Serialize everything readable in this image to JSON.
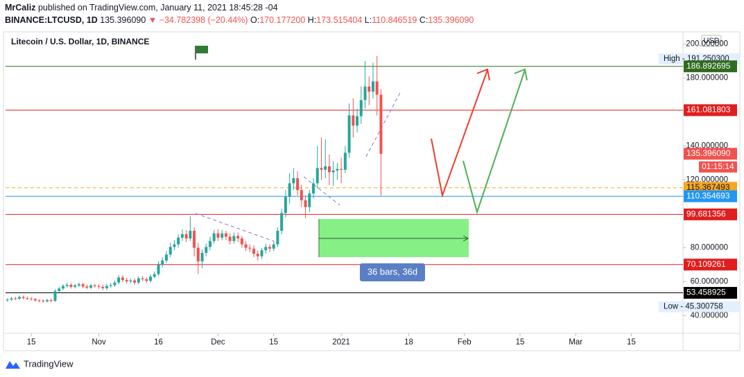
{
  "header": {
    "author": "MrCaliz",
    "published": "published on TradingView.com, January 11, 2021 18:45:28 -04",
    "symbol": "BINANCE:LTCUSD, 1D",
    "last": "135.396090",
    "change": "▼ −34.782398 (−20.44%)",
    "ohlc": [
      {
        "key": "O:",
        "value": "170.177200"
      },
      {
        "key": "H:",
        "value": "173.515404"
      },
      {
        "key": "L:",
        "value": "110.846519"
      },
      {
        "key": "C:",
        "value": "135.396090"
      }
    ]
  },
  "footer": {
    "brand": "TradingView"
  },
  "chart_data": {
    "type": "candlestick",
    "title": "Litecoin / U.S. Dollar, 1D, BINANCE",
    "currency": "USD",
    "up_color": "#26a69a",
    "down_color": "#ef5350",
    "x": [
      "2020-10-09",
      "2020-10-10",
      "2020-10-11",
      "2020-10-12",
      "2020-10-13",
      "2020-10-14",
      "2020-10-15",
      "2020-10-16",
      "2020-10-17",
      "2020-10-18",
      "2020-10-19",
      "2020-10-20",
      "2020-10-21",
      "2020-10-22",
      "2020-10-23",
      "2020-10-24",
      "2020-10-25",
      "2020-10-26",
      "2020-10-27",
      "2020-10-28",
      "2020-10-29",
      "2020-10-30",
      "2020-10-31",
      "2020-11-01",
      "2020-11-02",
      "2020-11-03",
      "2020-11-04",
      "2020-11-05",
      "2020-11-06",
      "2020-11-07",
      "2020-11-08",
      "2020-11-09",
      "2020-11-10",
      "2020-11-11",
      "2020-11-12",
      "2020-11-13",
      "2020-11-14",
      "2020-11-15",
      "2020-11-16",
      "2020-11-17",
      "2020-11-18",
      "2020-11-19",
      "2020-11-20",
      "2020-11-21",
      "2020-11-22",
      "2020-11-23",
      "2020-11-24",
      "2020-11-25",
      "2020-11-26",
      "2020-11-27",
      "2020-11-28",
      "2020-11-29",
      "2020-11-30",
      "2020-12-01",
      "2020-12-02",
      "2020-12-03",
      "2020-12-04",
      "2020-12-05",
      "2020-12-06",
      "2020-12-07",
      "2020-12-08",
      "2020-12-09",
      "2020-12-10",
      "2020-12-11",
      "2020-12-12",
      "2020-12-13",
      "2020-12-14",
      "2020-12-15",
      "2020-12-16",
      "2020-12-17",
      "2020-12-18",
      "2020-12-19",
      "2020-12-20",
      "2020-12-21",
      "2020-12-22",
      "2020-12-23",
      "2020-12-24",
      "2020-12-25",
      "2020-12-26",
      "2020-12-27",
      "2020-12-28",
      "2020-12-29",
      "2020-12-30",
      "2020-12-31",
      "2021-01-01",
      "2021-01-02",
      "2021-01-03",
      "2021-01-04",
      "2021-01-05",
      "2021-01-06",
      "2021-01-07",
      "2021-01-08",
      "2021-01-09",
      "2021-01-10",
      "2021-01-11"
    ],
    "open": [
      49.0,
      49.5,
      50.2,
      50.0,
      51.0,
      50.4,
      50.1,
      49.8,
      49.0,
      48.8,
      48.5,
      49.2,
      48.7,
      54.5,
      56.0,
      57.5,
      58.2,
      57.0,
      57.8,
      58.5,
      57.2,
      56.5,
      57.8,
      57.4,
      57.0,
      56.2,
      57.5,
      58.0,
      59.5,
      62.5,
      61.0,
      60.2,
      60.8,
      59.5,
      62.0,
      61.5,
      60.5,
      63.0,
      64.5,
      70.0,
      72.5,
      76.0,
      80.5,
      82.0,
      86.0,
      88.0,
      85.5,
      90.0,
      80.0,
      72.0,
      77.0,
      80.5,
      84.0,
      88.5,
      86.0,
      88.5,
      86.5,
      84.0,
      87.0,
      85.5,
      82.0,
      80.0,
      79.5,
      76.5,
      75.0,
      78.5,
      80.5,
      79.5,
      82.0,
      90.0,
      100.5,
      110.0,
      118.0,
      121.0,
      114.0,
      108.0,
      104.0,
      112.0,
      118.0,
      127.0,
      126.0,
      128.0,
      124.5,
      125.5,
      126.5,
      126.0,
      136.0,
      158.0,
      152.0,
      157.5,
      167.0,
      175.0,
      172.0,
      178.0,
      170.1772
    ],
    "high": [
      50.3,
      51.0,
      51.2,
      51.8,
      51.9,
      51.2,
      50.9,
      50.5,
      49.8,
      49.6,
      50.0,
      50.1,
      55.6,
      57.0,
      58.6,
      59.4,
      59.2,
      58.8,
      59.6,
      59.4,
      58.3,
      58.9,
      58.8,
      58.6,
      58.2,
      58.7,
      59.3,
      60.8,
      64.0,
      63.8,
      62.3,
      62.0,
      61.9,
      63.3,
      63.4,
      62.6,
      64.3,
      66.0,
      72.0,
      74.5,
      78.0,
      83.0,
      84.5,
      88.0,
      91.0,
      90.5,
      98.5,
      92.0,
      83.0,
      79.0,
      82.5,
      86.5,
      90.5,
      91.0,
      90.5,
      90.0,
      88.5,
      89.0,
      89.0,
      87.0,
      84.0,
      82.0,
      81.5,
      78.5,
      80.0,
      82.5,
      82.0,
      84.0,
      92.0,
      103.0,
      114.0,
      124.0,
      127.0,
      125.0,
      117.0,
      111.0,
      114.0,
      121.0,
      140.0,
      145.0,
      144.0,
      135.0,
      131.0,
      130.0,
      133.0,
      140.0,
      165.0,
      168.0,
      162.0,
      175.0,
      190.0,
      181.0,
      189.0,
      193.0,
      173.515404
    ],
    "low": [
      48.3,
      48.8,
      49.2,
      49.3,
      49.6,
      49.2,
      48.9,
      48.2,
      47.9,
      47.7,
      47.8,
      47.9,
      48.2,
      53.6,
      55.0,
      56.6,
      56.0,
      56.1,
      56.9,
      56.2,
      55.6,
      55.6,
      56.5,
      55.8,
      55.0,
      55.2,
      56.5,
      57.0,
      58.5,
      59.8,
      59.0,
      59.1,
      58.3,
      58.4,
      60.3,
      59.3,
      59.5,
      62.0,
      63.5,
      68.5,
      71.0,
      74.5,
      78.5,
      80.0,
      84.0,
      83.5,
      84.0,
      75.0,
      64.5,
      68.0,
      75.0,
      78.5,
      82.5,
      84.0,
      84.5,
      84.5,
      82.0,
      82.5,
      83.5,
      80.0,
      78.0,
      77.5,
      74.5,
      72.5,
      73.5,
      76.5,
      77.5,
      78.0,
      80.5,
      88.0,
      98.0,
      106.0,
      114.0,
      111.0,
      104.0,
      97.5,
      101.0,
      109.0,
      115.0,
      120.0,
      121.0,
      117.0,
      116.5,
      120.0,
      118.0,
      124.0,
      133.0,
      145.0,
      148.0,
      153.0,
      162.0,
      164.0,
      168.0,
      158.0,
      110.846519
    ],
    "close": [
      49.5,
      50.2,
      50.0,
      51.0,
      50.4,
      50.1,
      49.8,
      49.0,
      48.8,
      48.5,
      49.2,
      48.7,
      54.5,
      56.0,
      57.5,
      58.2,
      57.0,
      57.8,
      58.5,
      57.2,
      56.5,
      57.8,
      57.4,
      57.0,
      56.2,
      57.5,
      58.0,
      59.5,
      62.5,
      61.0,
      60.2,
      60.8,
      59.5,
      62.0,
      61.5,
      60.5,
      63.0,
      64.5,
      70.0,
      72.5,
      76.0,
      80.5,
      82.0,
      86.0,
      88.0,
      85.5,
      90.0,
      80.0,
      72.0,
      77.0,
      80.5,
      84.0,
      88.5,
      86.0,
      88.5,
      86.5,
      84.0,
      87.0,
      85.5,
      82.0,
      80.0,
      79.5,
      76.5,
      75.0,
      78.5,
      80.5,
      79.5,
      82.0,
      90.0,
      100.5,
      110.0,
      118.0,
      121.0,
      114.0,
      108.0,
      104.0,
      112.0,
      118.0,
      127.0,
      126.0,
      128.0,
      124.5,
      125.5,
      126.5,
      126.0,
      136.0,
      158.0,
      152.0,
      157.5,
      167.0,
      175.0,
      172.0,
      178.0,
      170.1772,
      135.39609
    ],
    "xlim": [
      "2020-10-08",
      "2021-03-28"
    ],
    "xticks": [
      {
        "value": "2020-10-15",
        "label": "15"
      },
      {
        "value": "2020-11-01",
        "label": "Nov"
      },
      {
        "value": "2020-11-16",
        "label": "16"
      },
      {
        "value": "2020-12-01",
        "label": "Dec"
      },
      {
        "value": "2020-12-15",
        "label": "15"
      },
      {
        "value": "2021-01-01",
        "label": "2021"
      },
      {
        "value": "2021-01-18",
        "label": "18"
      },
      {
        "value": "2021-02-01",
        "label": "Feb"
      },
      {
        "value": "2021-02-15",
        "label": "15"
      },
      {
        "value": "2021-03-01",
        "label": "Mar"
      },
      {
        "value": "2021-03-15",
        "label": "15"
      }
    ],
    "ylim": [
      29.6,
      207.2
    ],
    "yticks": [
      {
        "value": 200,
        "label": "200.000000"
      },
      {
        "value": 180,
        "label": "180.000000"
      },
      {
        "value": 140,
        "label": "140.000000"
      },
      {
        "value": 120,
        "label": "120.000000"
      },
      {
        "value": 80,
        "label": "80.000000"
      },
      {
        "value": 60,
        "label": "60.000000"
      },
      {
        "value": 40,
        "label": "40.000000"
      }
    ],
    "grid": false,
    "levels": [
      {
        "value": 186.892695,
        "label": "186.892695",
        "color": "#2e6b1f",
        "text_color": "#ffffff",
        "line": "solid"
      },
      {
        "value": 161.081803,
        "label": "161.081803",
        "color": "#e01e1e",
        "text_color": "#ffffff",
        "line": "solid"
      },
      {
        "value": 135.39609,
        "label": "135.396090",
        "color": "#ef5350",
        "text_color": "#ffffff",
        "line": "none"
      },
      {
        "value": 115.367493,
        "label": "115.367493",
        "color": "#f5a623",
        "text_color": "#131722",
        "line": "dashed"
      },
      {
        "value": 110.354693,
        "label": "110.354693",
        "color": "#2196f3",
        "text_color": "#ffffff",
        "line": "solid"
      },
      {
        "value": 99.681356,
        "label": "99.681356",
        "color": "#e01e1e",
        "text_color": "#ffffff",
        "line": "solid"
      },
      {
        "value": 70.109261,
        "label": "70.109261",
        "color": "#e01e1e",
        "text_color": "#ffffff",
        "line": "solid"
      },
      {
        "value": 53.458925,
        "label": "53.458925",
        "color": "#000000",
        "text_color": "#ffffff",
        "line": "solid"
      }
    ],
    "countdown": "01:15:14",
    "extremes": [
      {
        "value": 191.2503,
        "label": "High - 191.250300"
      },
      {
        "value": 45.300758,
        "label": "Low - 45.300758"
      }
    ],
    "measure_label": "36 bars, 36d"
  }
}
